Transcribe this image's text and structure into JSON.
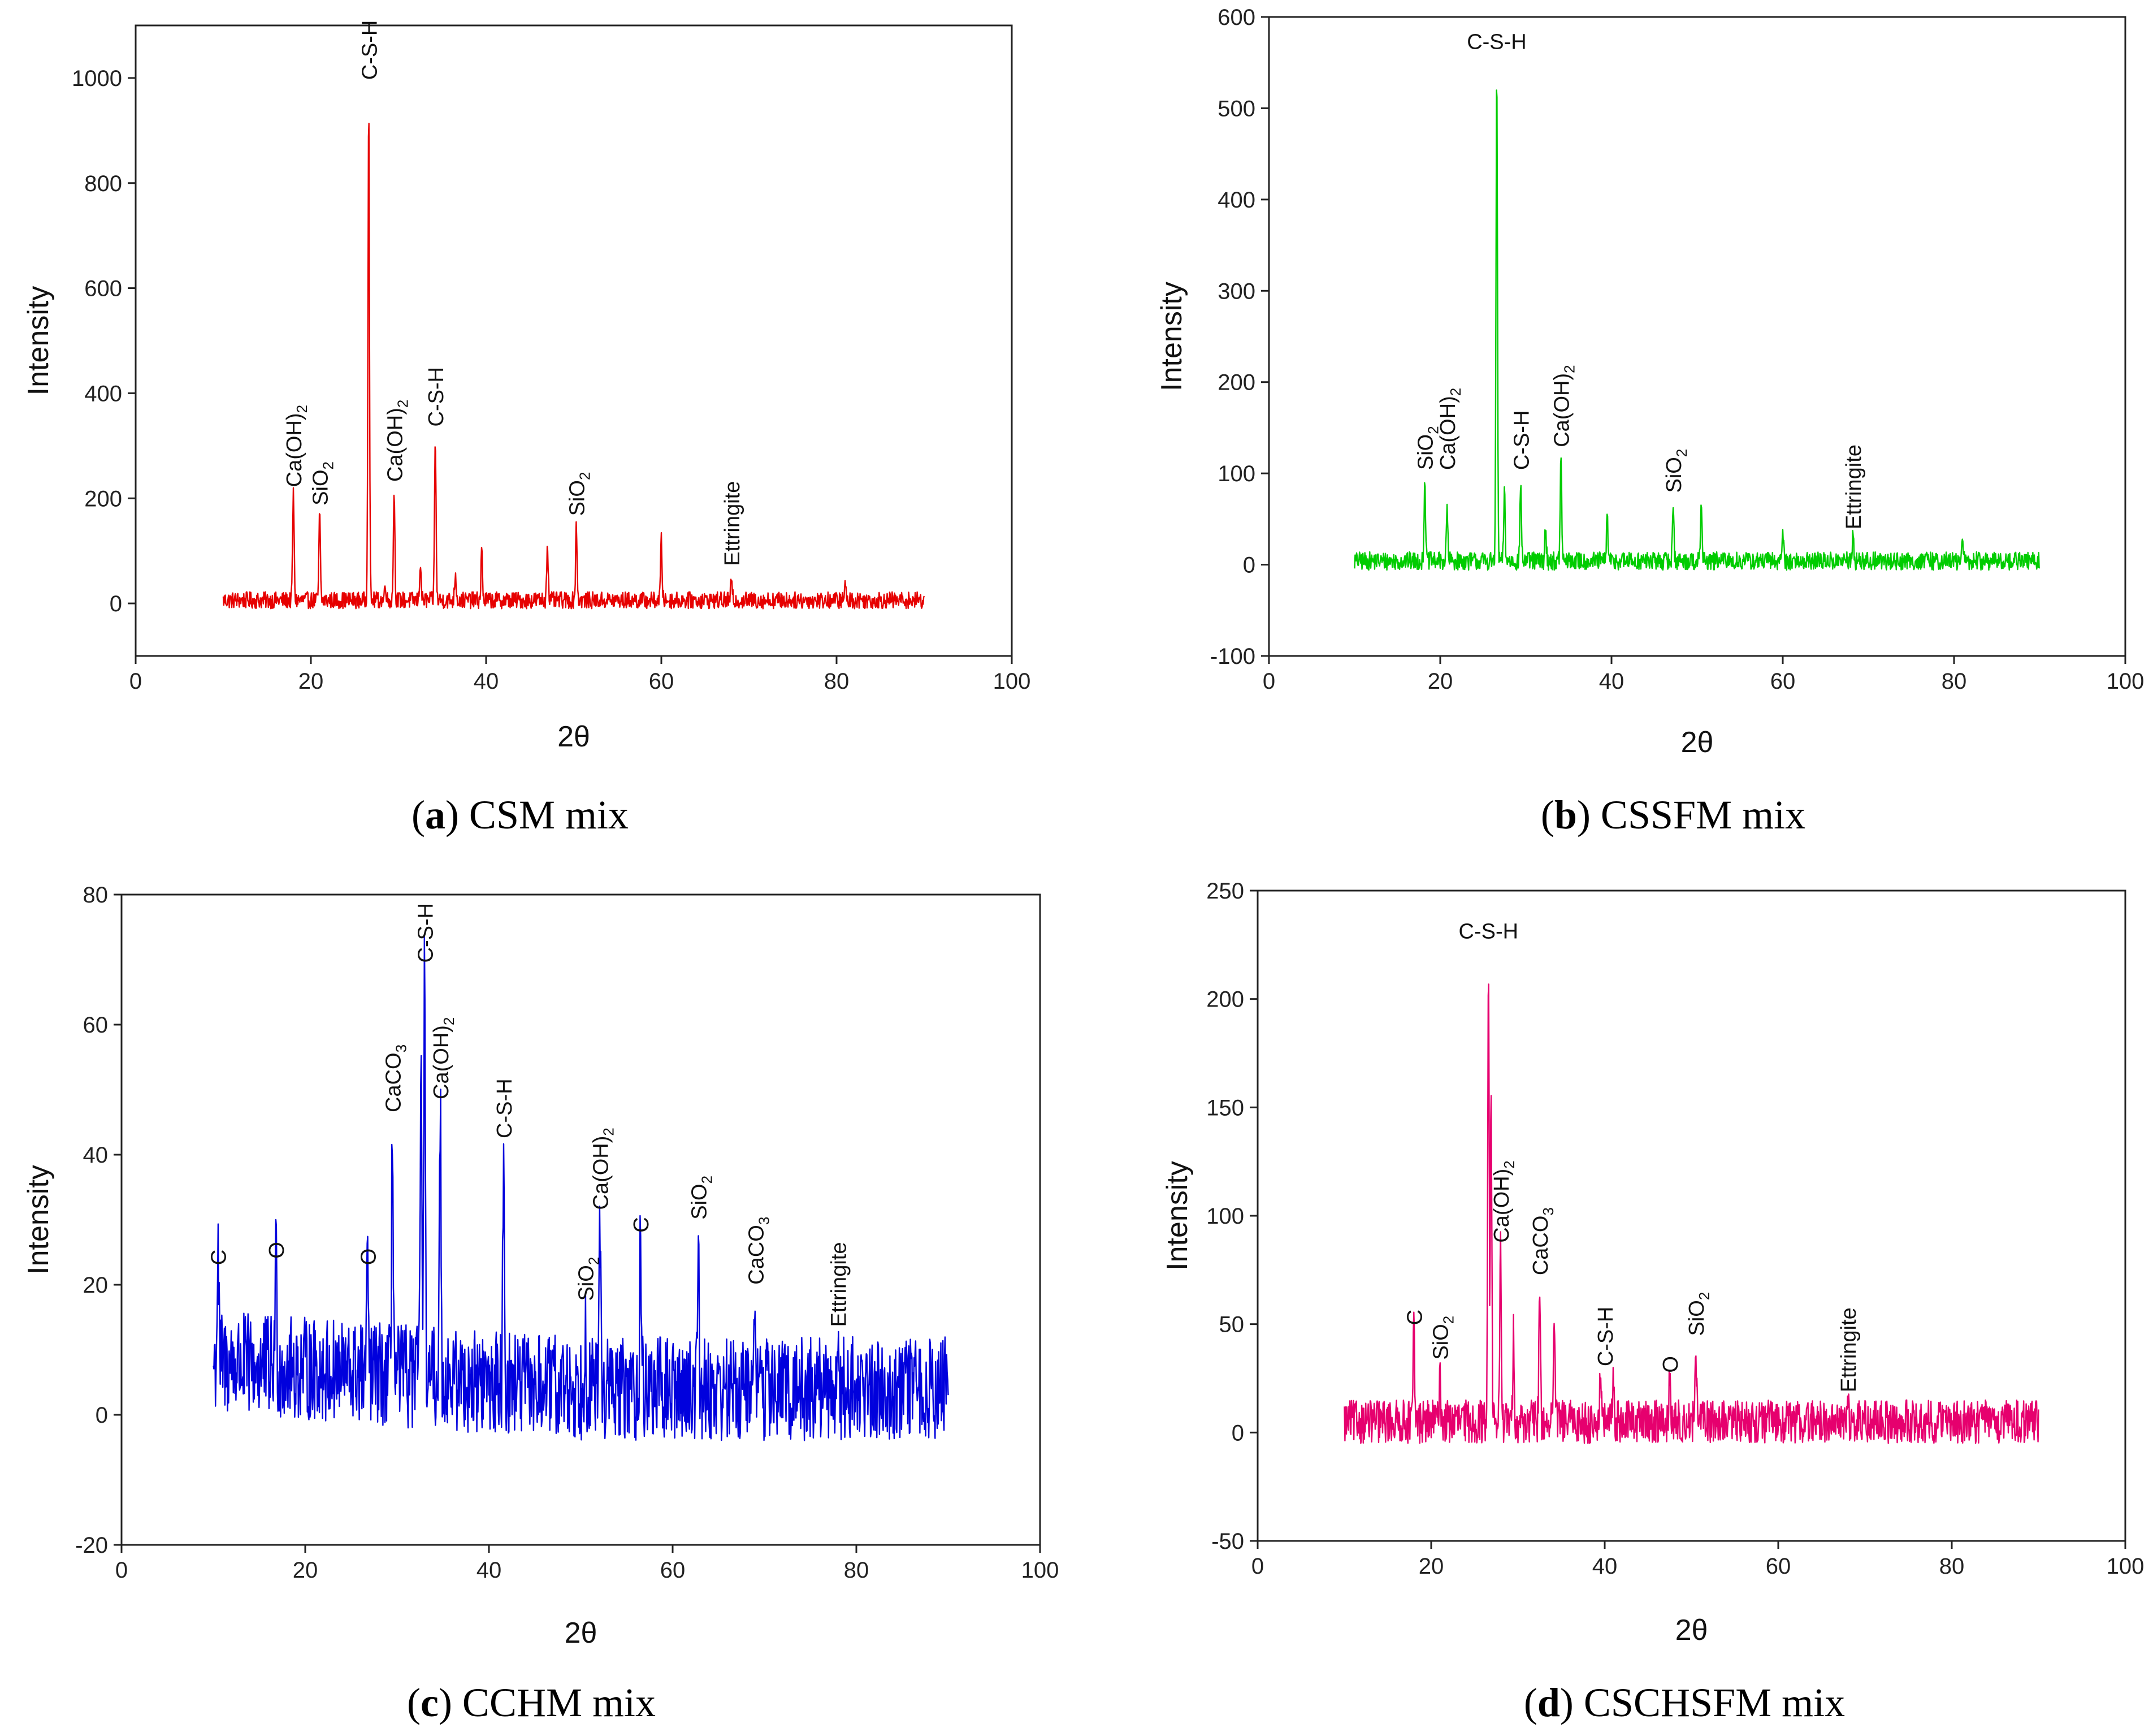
{
  "chart_data": [
    {
      "type": "line",
      "caption_letter": "a",
      "caption_text": "CSM mix",
      "xlabel": "2θ",
      "ylabel": "Intensity",
      "xlim": [
        0,
        100
      ],
      "ylim": [
        -100,
        1100
      ],
      "xticks": [
        0,
        20,
        40,
        60,
        80,
        100
      ],
      "yticks": [
        0,
        200,
        400,
        600,
        800,
        1000
      ],
      "x_range": [
        10,
        90
      ],
      "noise": {
        "base": 6,
        "amp": 16,
        "start_bump": 0
      },
      "color": "#e60000",
      "series": [
        {
          "peaks": [
            [
              18,
              210
            ],
            [
              21,
              170
            ],
            [
              26.6,
              955
            ],
            [
              28.5,
              40
            ],
            [
              29.5,
              215
            ],
            [
              32.5,
              80
            ],
            [
              34.2,
              320
            ],
            [
              36.5,
              60
            ],
            [
              39.5,
              100
            ],
            [
              47,
              120
            ],
            [
              50.3,
              150
            ],
            [
              60,
              120
            ],
            [
              68,
              40
            ],
            [
              81,
              35
            ]
          ]
        }
      ],
      "annotations": [
        {
          "text": "Ca(OH)",
          "sub": "2",
          "x": 18,
          "y": 215
        },
        {
          "text": "SiO",
          "sub": "2",
          "x": 21,
          "y": 180
        },
        {
          "text": "C-S-H",
          "sub": "",
          "x": 26.6,
          "y": 990
        },
        {
          "text": "Ca(OH)",
          "sub": "2",
          "x": 29.5,
          "y": 225
        },
        {
          "text": "C-S-H",
          "sub": "",
          "x": 34.2,
          "y": 330
        },
        {
          "text": "SiO",
          "sub": "2",
          "x": 50.3,
          "y": 160
        },
        {
          "text": "Ettringite",
          "sub": "",
          "x": 68,
          "y": 65
        }
      ]
    },
    {
      "type": "line",
      "caption_letter": "b",
      "caption_text": "CSSFM mix",
      "xlabel": "2θ",
      "ylabel": "Intensity",
      "xlim": [
        0,
        100
      ],
      "ylim": [
        -100,
        600
      ],
      "xticks": [
        0,
        20,
        40,
        60,
        80,
        100
      ],
      "yticks": [
        -100,
        0,
        100,
        200,
        300,
        400,
        500,
        600
      ],
      "x_range": [
        10,
        90
      ],
      "noise": {
        "base": 4,
        "amp": 10,
        "start_bump": 0
      },
      "color": "#00cc00",
      "series": [
        {
          "peaks": [
            [
              18.2,
              95
            ],
            [
              20.8,
              60
            ],
            [
              26.6,
              545
            ],
            [
              27.5,
              80
            ],
            [
              29.4,
              90
            ],
            [
              32.3,
              40
            ],
            [
              34.1,
              120
            ],
            [
              39.5,
              55
            ],
            [
              47.2,
              70
            ],
            [
              50.5,
              70
            ],
            [
              60,
              40
            ],
            [
              68.2,
              30
            ],
            [
              81,
              25
            ]
          ]
        }
      ],
      "annotations": [
        {
          "text": "SiO",
          "sub": "2",
          "x": 18.2,
          "y": 100
        },
        {
          "text": "Ca(OH)",
          "sub": "2",
          "x": 20.8,
          "y": 100
        },
        {
          "text": "C-S-H",
          "sub": "",
          "x": 26.6,
          "y": 565,
          "horizontal": true
        },
        {
          "text": "C-S-H",
          "sub": "",
          "x": 29.4,
          "y": 100
        },
        {
          "text": "Ca(OH)",
          "sub": "2",
          "x": 34.1,
          "y": 125
        },
        {
          "text": "SiO",
          "sub": "2",
          "x": 47.2,
          "y": 75
        },
        {
          "text": "Ettringite",
          "sub": "",
          "x": 68.2,
          "y": 35
        }
      ]
    },
    {
      "type": "line",
      "caption_letter": "c",
      "caption_text": "CCHM mix",
      "xlabel": "2θ",
      "ylabel": "Intensity",
      "xlim": [
        0,
        100
      ],
      "ylim": [
        -20,
        80
      ],
      "xticks": [
        0,
        20,
        40,
        60,
        80,
        100
      ],
      "yticks": [
        -20,
        0,
        20,
        40,
        60,
        80
      ],
      "x_range": [
        10,
        90
      ],
      "noise": {
        "base": 4,
        "amp": 8,
        "start_bump": 4
      },
      "color": "#0000dd",
      "series": [
        {
          "peaks": [
            [
              10.5,
              22
            ],
            [
              16.8,
              23
            ],
            [
              26.8,
              22
            ],
            [
              29.5,
              45
            ],
            [
              32.6,
              57
            ],
            [
              33,
              68
            ],
            [
              34.7,
              47
            ],
            [
              41.6,
              41
            ],
            [
              50.5,
              16
            ],
            [
              52.1,
              30
            ],
            [
              56.5,
              27
            ],
            [
              62.8,
              29
            ],
            [
              69,
              19
            ],
            [
              78,
              12
            ]
          ]
        }
      ],
      "annotations": [
        {
          "text": "C",
          "sub": "",
          "x": 10.5,
          "y": 22.5
        },
        {
          "text": "O",
          "sub": "",
          "x": 16.8,
          "y": 23.5
        },
        {
          "text": "O",
          "sub": "",
          "x": 26.8,
          "y": 22.5
        },
        {
          "text": "CaCO",
          "sub": "3",
          "x": 29.5,
          "y": 46
        },
        {
          "text": "C-S-H",
          "sub": "",
          "x": 33,
          "y": 69
        },
        {
          "text": "Ca(OH)",
          "sub": "2",
          "x": 34.7,
          "y": 48
        },
        {
          "text": "C-S-H",
          "sub": "",
          "x": 41.6,
          "y": 42
        },
        {
          "text": "SiO",
          "sub": "2",
          "x": 50.5,
          "y": 17
        },
        {
          "text": "Ca(OH)",
          "sub": "2",
          "x": 52.1,
          "y": 31
        },
        {
          "text": "C",
          "sub": "",
          "x": 56.5,
          "y": 27.5
        },
        {
          "text": "SiO",
          "sub": "2",
          "x": 62.8,
          "y": 29.5
        },
        {
          "text": "CaCO",
          "sub": "3",
          "x": 69,
          "y": 19.5
        },
        {
          "text": "Ettringite",
          "sub": "",
          "x": 78,
          "y": 13
        }
      ]
    },
    {
      "type": "line",
      "caption_letter": "d",
      "caption_text": "CSCHSFM mix",
      "xlabel": "2θ",
      "ylabel": "Intensity",
      "xlim": [
        0,
        100
      ],
      "ylim": [
        -50,
        250
      ],
      "xticks": [
        0,
        20,
        40,
        60,
        80,
        100
      ],
      "yticks": [
        -50,
        0,
        50,
        100,
        150,
        200,
        250
      ],
      "x_range": [
        10,
        90
      ],
      "noise": {
        "base": 5,
        "amp": 10,
        "start_bump": 0
      },
      "color": "#e6006e",
      "series": [
        {
          "peaks": [
            [
              18,
              48
            ],
            [
              21,
              30
            ],
            [
              26.6,
              222
            ],
            [
              26.9,
              163
            ],
            [
              28,
              85
            ],
            [
              29.5,
              45
            ],
            [
              32.5,
              70
            ],
            [
              34.2,
              55
            ],
            [
              39.5,
              28
            ],
            [
              41,
              25
            ],
            [
              47.5,
              25
            ],
            [
              50.5,
              42
            ],
            [
              68,
              16
            ]
          ]
        }
      ],
      "annotations": [
        {
          "text": "C",
          "sub": "",
          "x": 18,
          "y": 48
        },
        {
          "text": "SiO",
          "sub": "2",
          "x": 21,
          "y": 32
        },
        {
          "text": "C-S-H",
          "sub": "",
          "x": 26.6,
          "y": 228,
          "horizontal": true
        },
        {
          "text": "Ca(OH)",
          "sub": "2",
          "x": 28,
          "y": 86
        },
        {
          "text": "CaCO",
          "sub": "3",
          "x": 32.5,
          "y": 71
        },
        {
          "text": "C-S-H",
          "sub": "",
          "x": 40,
          "y": 29
        },
        {
          "text": "O",
          "sub": "",
          "x": 47.5,
          "y": 26
        },
        {
          "text": "SiO",
          "sub": "2",
          "x": 50.5,
          "y": 43
        },
        {
          "text": "Ettringite",
          "sub": "",
          "x": 68,
          "y": 17
        }
      ]
    }
  ]
}
